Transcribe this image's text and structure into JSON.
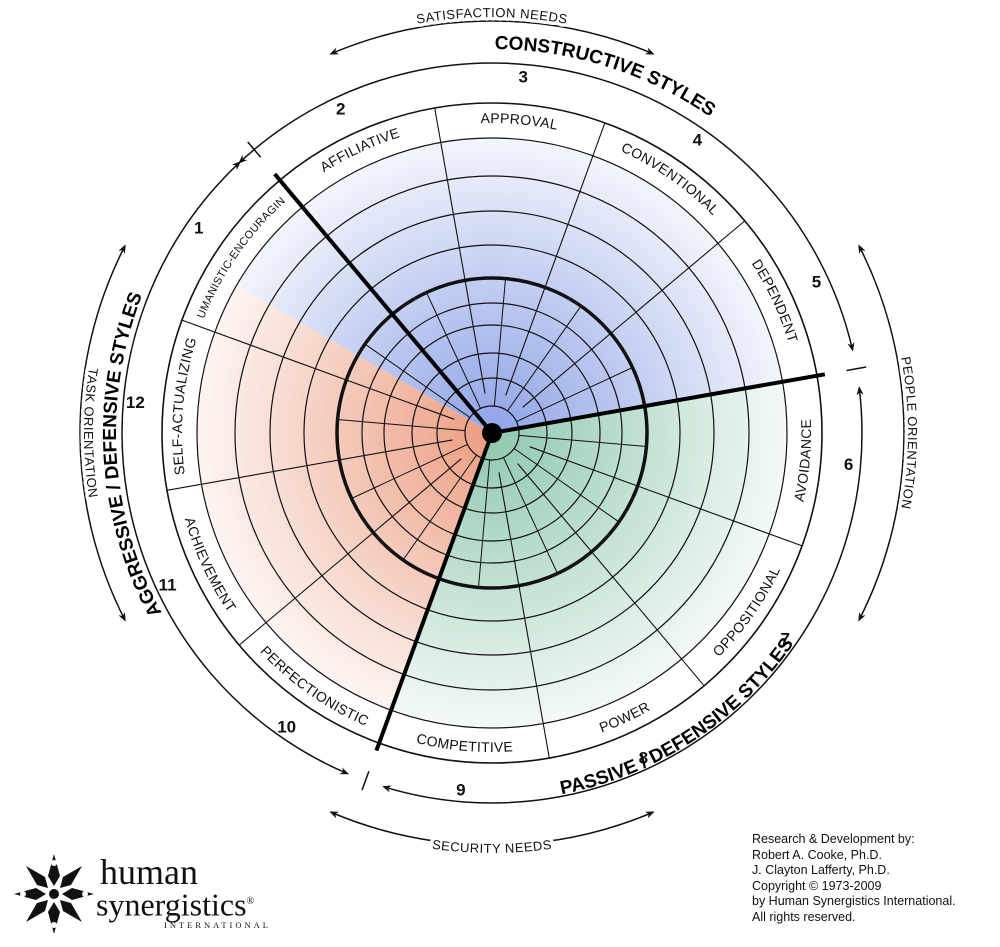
{
  "segments": [
    {
      "num": "1",
      "label": "HUMANISTIC-ENCOURAGING",
      "cluster": "constructive"
    },
    {
      "num": "2",
      "label": "AFFILIATIVE",
      "cluster": "constructive"
    },
    {
      "num": "3",
      "label": "APPROVAL",
      "cluster": "passive"
    },
    {
      "num": "4",
      "label": "CONVENTIONAL",
      "cluster": "passive"
    },
    {
      "num": "5",
      "label": "DEPENDENT",
      "cluster": "passive"
    },
    {
      "num": "6",
      "label": "AVOIDANCE",
      "cluster": "passive"
    },
    {
      "num": "7",
      "label": "OPPOSITIONAL",
      "cluster": "aggressive"
    },
    {
      "num": "8",
      "label": "POWER",
      "cluster": "aggressive"
    },
    {
      "num": "9",
      "label": "COMPETITIVE",
      "cluster": "aggressive"
    },
    {
      "num": "10",
      "label": "PERFECTIONISTIC",
      "cluster": "aggressive"
    },
    {
      "num": "11",
      "label": "ACHIEVEMENT",
      "cluster": "constructive"
    },
    {
      "num": "12",
      "label": "SELF-ACTUALIZING",
      "cluster": "constructive"
    }
  ],
  "groups": {
    "constructive": "CONSTRUCTIVE STYLES",
    "passive": "PASSIVE / DEFENSIVE STYLES",
    "aggressive": "AGGRESSIVE / DEFENSIVE STYLES"
  },
  "needs": {
    "satisfaction": "SATISFACTION NEEDS",
    "security": "SECURITY NEEDS",
    "people": "PEOPLE ORIENTATION",
    "task": "TASK ORIENTATION"
  },
  "colors": {
    "constructive": "#8fa3e6",
    "passive": "#8fc8ad",
    "aggressive": "#ec9c80"
  },
  "credits": [
    "Research & Development by:",
    "Robert A. Cooke, Ph.D.",
    "J. Clayton Lafferty, Ph.D.",
    "Copyright © 1973-2009",
    "by Human Synergistics International.",
    "All rights reserved."
  ],
  "logo": {
    "line1": "human",
    "line2": "synergistics",
    "mark": "®",
    "line3": "INTERNATIONAL"
  }
}
